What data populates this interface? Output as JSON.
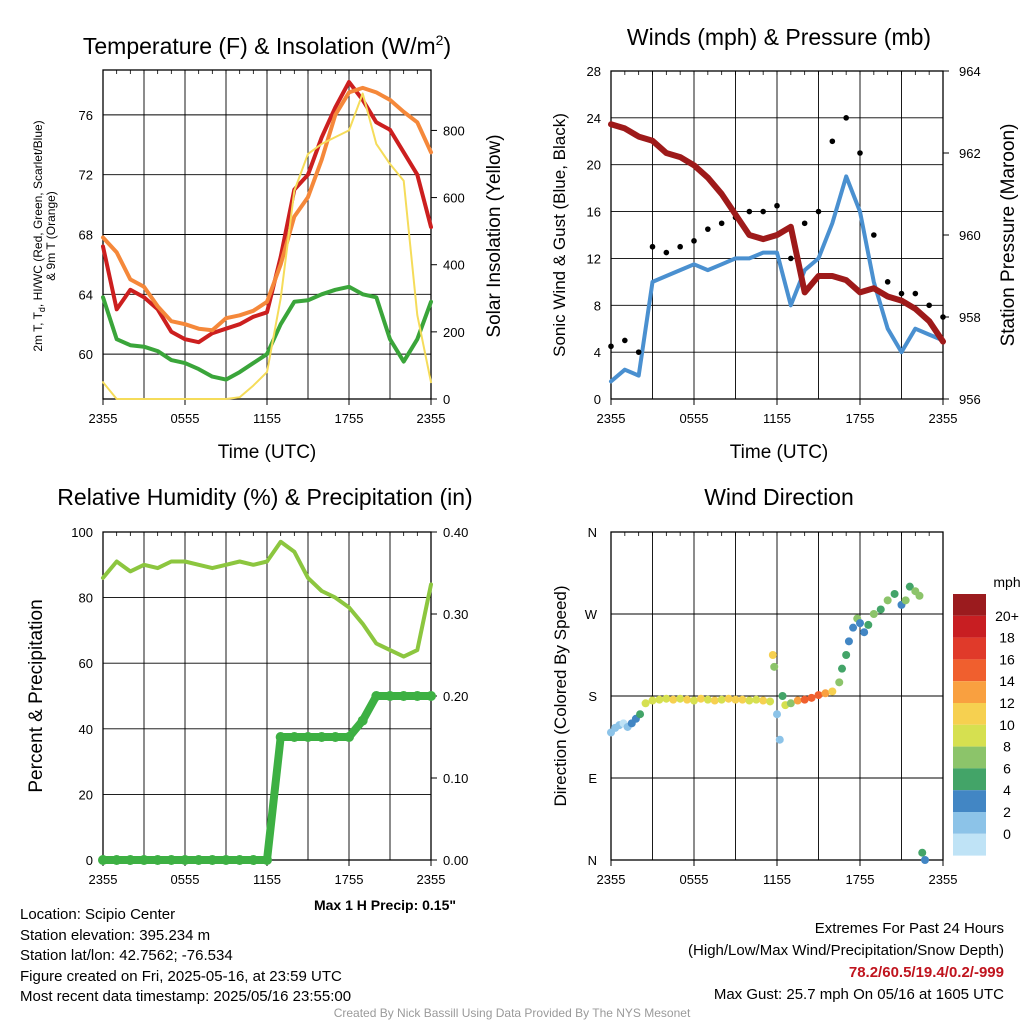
{
  "colors": {
    "temp": "#cc1f1f",
    "wc": "#e8562a",
    "nine_m": "#f5883a",
    "dew": "#3aa53a",
    "insolation": "#f5dc5a",
    "wind": "#4a90d0",
    "gust": "#000000",
    "pressure": "#9e1a1a",
    "rh": "#8cc63f",
    "precip": "#3db043",
    "maxprecip_text": "#2ca02c",
    "extremes_text": "#c0141e"
  },
  "chart_data": [
    {
      "type": "line",
      "title": "Temperature (F) & Insolation (W/m2)",
      "title_text": "Temperature (F) & Insolation (W/m",
      "title_sup": "2",
      "title_close": ")",
      "xlabel": "Time (UTC)",
      "ylabel": "2m T, Td, HI/WC (Red, Green, Scarlet/Blue) & 9m T (Orange)",
      "ylabel_lines": [
        "2m T, T",
        "d",
        ", HI/WC (Red, Green, Scarlet/Blue)",
        "& 9m T (Orange)"
      ],
      "y2label": "Solar Insolation (Yellow)",
      "x_ticks": [
        "2355",
        "0555",
        "1155",
        "1755",
        "2355"
      ],
      "x": [
        0,
        1,
        2,
        3,
        4,
        5,
        6,
        7,
        8,
        9,
        10,
        11,
        12,
        13,
        14,
        15,
        16,
        17,
        18,
        19,
        20,
        21,
        22,
        23,
        24
      ],
      "ylim": [
        57,
        79
      ],
      "y_ticks": [
        60,
        64,
        68,
        72,
        76
      ],
      "y2lim": [
        0,
        980
      ],
      "y2_ticks": [
        0,
        200,
        400,
        600,
        800
      ],
      "grid": true,
      "series": [
        {
          "name": "2m T",
          "axis": "left",
          "color": "#cc1f1f",
          "values": [
            67.2,
            63.0,
            64.3,
            63.8,
            63.0,
            61.5,
            61.0,
            60.8,
            61.4,
            61.7,
            62.0,
            62.5,
            62.8,
            66.5,
            71.0,
            72.0,
            74.5,
            76.5,
            78.2,
            77.0,
            75.5,
            75.0,
            73.5,
            72.0,
            68.5
          ]
        },
        {
          "name": "9m T",
          "axis": "left",
          "color": "#f5883a",
          "values": [
            67.8,
            66.8,
            65.0,
            64.5,
            63.2,
            62.2,
            62.0,
            61.7,
            61.6,
            62.4,
            62.6,
            62.9,
            63.5,
            66.0,
            69.2,
            70.5,
            73.0,
            76.0,
            77.5,
            77.8,
            77.5,
            77.0,
            76.2,
            75.5,
            73.5
          ]
        },
        {
          "name": "Td",
          "axis": "left",
          "color": "#3aa53a",
          "values": [
            63.8,
            61.0,
            60.6,
            60.5,
            60.2,
            59.6,
            59.4,
            59.0,
            58.5,
            58.3,
            58.8,
            59.4,
            60.0,
            62.0,
            63.5,
            63.6,
            64.0,
            64.3,
            64.5,
            64.0,
            63.8,
            61.0,
            59.5,
            61.0,
            63.5
          ]
        },
        {
          "name": "Insolation",
          "axis": "right",
          "color": "#f5dc5a",
          "values": [
            50,
            0,
            0,
            0,
            0,
            0,
            0,
            0,
            0,
            0,
            5,
            40,
            80,
            300,
            620,
            730,
            760,
            780,
            800,
            910,
            760,
            700,
            650,
            250,
            50
          ]
        }
      ]
    },
    {
      "type": "line",
      "title": "Winds (mph) & Pressure (mb)",
      "xlabel": "Time (UTC)",
      "ylabel": "Sonic Wind & Gust (Blue, Black)",
      "y2label": "Station Pressure (Maroon)",
      "x_ticks": [
        "2355",
        "0555",
        "1155",
        "1755",
        "2355"
      ],
      "x": [
        0,
        1,
        2,
        3,
        4,
        5,
        6,
        7,
        8,
        9,
        10,
        11,
        12,
        13,
        14,
        15,
        16,
        17,
        18,
        19,
        20,
        21,
        22,
        23,
        24
      ],
      "ylim": [
        0,
        28
      ],
      "y_ticks": [
        0,
        4,
        8,
        12,
        16,
        20,
        24,
        28
      ],
      "y2lim": [
        956,
        964
      ],
      "y2_ticks": [
        956,
        958,
        960,
        962,
        964
      ],
      "grid": true,
      "series": [
        {
          "name": "Sonic Wind",
          "axis": "left",
          "color": "#4a90d0",
          "values": [
            1.5,
            2.5,
            2.0,
            10.0,
            10.5,
            11.0,
            11.5,
            11.0,
            11.5,
            12.0,
            12.0,
            12.5,
            12.5,
            8.0,
            11.0,
            12.0,
            15.0,
            19.0,
            16.0,
            10.0,
            6.0,
            4.0,
            6.0,
            5.5,
            5.0
          ]
        },
        {
          "name": "Gust",
          "axis": "left",
          "color": "#000000",
          "values": [
            4.5,
            5.0,
            4.0,
            13.0,
            12.5,
            13.0,
            13.5,
            14.5,
            15.0,
            15.5,
            16.0,
            16.0,
            16.5,
            12.0,
            15.0,
            16.0,
            22.0,
            24.0,
            21.0,
            14.0,
            10.0,
            9.0,
            9.0,
            8.0,
            7.0
          ]
        },
        {
          "name": "Station Pressure",
          "axis": "right",
          "color": "#9e1a1a",
          "values": [
            962.7,
            962.6,
            962.4,
            962.3,
            962.0,
            961.9,
            961.7,
            961.4,
            961.0,
            960.5,
            960.0,
            959.9,
            960.0,
            960.2,
            958.6,
            959.0,
            959.0,
            958.9,
            958.6,
            958.7,
            958.5,
            958.4,
            958.2,
            957.9,
            957.4
          ]
        }
      ]
    },
    {
      "type": "line",
      "title": "Relative Humidity (%) & Precipitation (in)",
      "xlabel": "",
      "ylabel": "Percent & Precipitation",
      "x_ticks": [
        "2355",
        "0555",
        "1155",
        "1755",
        "2355"
      ],
      "x": [
        0,
        1,
        2,
        3,
        4,
        5,
        6,
        7,
        8,
        9,
        10,
        11,
        12,
        13,
        14,
        15,
        16,
        17,
        18,
        19,
        20,
        21,
        22,
        23,
        24
      ],
      "ylim": [
        0,
        100
      ],
      "y_ticks": [
        0,
        20,
        40,
        60,
        80,
        100
      ],
      "y2lim": [
        0,
        0.4
      ],
      "y2_ticks": [
        "0.00",
        "0.10",
        "0.20",
        "0.30",
        "0.40"
      ],
      "grid": true,
      "series": [
        {
          "name": "RH",
          "axis": "left",
          "color": "#8cc63f",
          "values": [
            86,
            91,
            88,
            90,
            89,
            91,
            91,
            90,
            89,
            90,
            91,
            90,
            91,
            97,
            94,
            86,
            82,
            80,
            77,
            72,
            66,
            64,
            62,
            64,
            84
          ]
        },
        {
          "name": "Precipitation",
          "axis": "right",
          "color": "#3db043",
          "values": [
            0,
            0,
            0,
            0,
            0,
            0,
            0,
            0,
            0,
            0,
            0,
            0,
            0,
            0.15,
            0.15,
            0.15,
            0.15,
            0.15,
            0.15,
            0.17,
            0.2,
            0.2,
            0.2,
            0.2,
            0.2
          ]
        }
      ],
      "annotation": "Max 1 H Precip: 0.15\""
    },
    {
      "type": "scatter",
      "title": "Wind Direction",
      "ylabel": "Direction (Colored By Speed)",
      "x_ticks": [
        "2355",
        "0555",
        "1155",
        "1755",
        "2355"
      ],
      "y_ticks": [
        "N",
        "E",
        "S",
        "W",
        "N"
      ],
      "ylim": [
        0,
        360
      ],
      "colorbar_title": "mph",
      "colorbar_labels": [
        "20+",
        "18",
        "16",
        "14",
        "12",
        "10",
        "8",
        "6",
        "4",
        "2",
        "0"
      ],
      "colorbar_colors": [
        "#9b1b1e",
        "#c81e22",
        "#e03a2a",
        "#f05f2e",
        "#f9a040",
        "#f6d050",
        "#d6e050",
        "#8cc46a",
        "#43a468",
        "#4286c4",
        "#8cc3e8",
        "#bfe3f6"
      ],
      "points": [
        [
          0,
          140,
          2
        ],
        [
          0.3,
          145,
          2
        ],
        [
          0.6,
          148,
          3
        ],
        [
          0.9,
          150,
          1
        ],
        [
          1.2,
          146,
          2
        ],
        [
          1.5,
          150,
          4
        ],
        [
          1.8,
          155,
          5
        ],
        [
          2.1,
          160,
          6
        ],
        [
          2.5,
          172,
          10
        ],
        [
          3,
          175,
          11
        ],
        [
          3.5,
          176,
          10
        ],
        [
          4,
          177,
          11
        ],
        [
          4.5,
          176,
          12
        ],
        [
          5,
          177,
          10
        ],
        [
          5.5,
          176,
          12
        ],
        [
          6,
          175,
          11
        ],
        [
          6.5,
          177,
          12
        ],
        [
          7,
          176,
          10
        ],
        [
          7.5,
          175,
          12
        ],
        [
          8,
          176,
          11
        ],
        [
          8.5,
          177,
          12
        ],
        [
          9,
          176,
          13
        ],
        [
          9.5,
          176,
          12
        ],
        [
          10,
          175,
          11
        ],
        [
          10.5,
          176,
          10
        ],
        [
          11,
          175,
          12
        ],
        [
          11.5,
          174,
          11
        ],
        [
          11.7,
          225,
          12
        ],
        [
          11.8,
          212,
          8
        ],
        [
          12,
          160,
          2
        ],
        [
          12.2,
          132,
          3
        ],
        [
          12.4,
          180,
          6
        ],
        [
          12.6,
          170,
          10
        ],
        [
          13,
          172,
          8
        ],
        [
          13.5,
          175,
          14
        ],
        [
          14,
          176,
          16
        ],
        [
          14.5,
          178,
          17
        ],
        [
          15,
          181,
          16
        ],
        [
          15.5,
          183,
          15
        ],
        [
          16,
          185,
          12
        ],
        [
          16.5,
          195,
          8
        ],
        [
          16.7,
          210,
          6
        ],
        [
          17,
          225,
          6
        ],
        [
          17.2,
          240,
          5
        ],
        [
          17.5,
          255,
          4
        ],
        [
          17.8,
          265,
          8
        ],
        [
          18,
          260,
          5
        ],
        [
          18.3,
          250,
          4
        ],
        [
          18.6,
          258,
          6
        ],
        [
          19,
          270,
          8
        ],
        [
          19.5,
          275,
          6
        ],
        [
          20,
          285,
          8
        ],
        [
          20.5,
          292,
          7
        ],
        [
          21,
          280,
          5
        ],
        [
          21.3,
          285,
          9
        ],
        [
          21.6,
          300,
          6
        ],
        [
          22,
          295,
          8
        ],
        [
          22.3,
          290,
          9
        ],
        [
          22.5,
          8,
          6
        ],
        [
          22.7,
          0,
          4
        ]
      ]
    }
  ],
  "info": {
    "location": "Location: Scipio Center",
    "elevation": "Station elevation: 395.234 m",
    "latlon": "Station lat/lon: 42.7562; -76.534",
    "created": "Figure created on Fri, 2025-05-16, at 23:59 UTC",
    "recent": "Most recent data timestamp: 2025/05/16 23:55:00"
  },
  "extremes": {
    "title": "Extremes For Past 24 Hours",
    "subtitle": "(High/Low/Max Wind/Precipitation/Snow Depth)",
    "values": "78.2/60.5/19.4/0.2/-999",
    "gust": "Max Gust: 25.7 mph On 05/16 at 1605 UTC"
  },
  "credit": "Created By Nick Bassill Using Data Provided By The NYS Mesonet"
}
